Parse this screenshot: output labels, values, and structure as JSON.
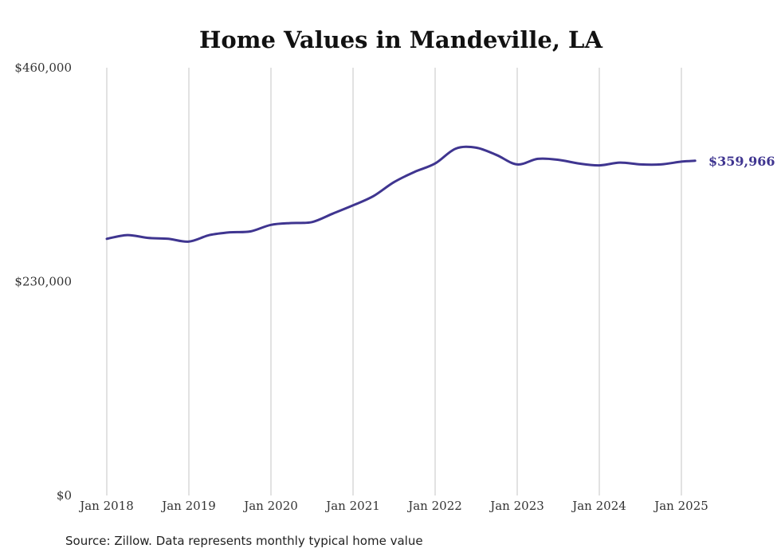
{
  "chart_data": {
    "type": "line",
    "title": "Home Values in Mandeville, LA",
    "source": "Source: Zillow. Data represents monthly typical home value",
    "xlabel": "",
    "ylabel": "",
    "ylim": [
      0,
      460000
    ],
    "y_ticks": [
      {
        "value": 0,
        "label": "$0"
      },
      {
        "value": 230000,
        "label": "$230,000"
      },
      {
        "value": 460000,
        "label": "$460,000"
      }
    ],
    "x_ticks": [
      {
        "value": "2018-01",
        "label": "Jan 2018"
      },
      {
        "value": "2019-01",
        "label": "Jan 2019"
      },
      {
        "value": "2020-01",
        "label": "Jan 2020"
      },
      {
        "value": "2021-01",
        "label": "Jan 2021"
      },
      {
        "value": "2022-01",
        "label": "Jan 2022"
      },
      {
        "value": "2023-01",
        "label": "Jan 2023"
      },
      {
        "value": "2024-01",
        "label": "Jan 2024"
      },
      {
        "value": "2025-01",
        "label": "Jan 2025"
      }
    ],
    "xlim": [
      "2018-01",
      "2025-03"
    ],
    "grid": "vertical",
    "color": "#3f3590",
    "end_label": "$359,966",
    "series": [
      {
        "x": [
          "2018-01",
          "2018-04",
          "2018-07",
          "2018-10",
          "2019-01",
          "2019-04",
          "2019-07",
          "2019-10",
          "2020-01",
          "2020-04",
          "2020-07",
          "2020-10",
          "2021-01",
          "2021-04",
          "2021-07",
          "2021-10",
          "2022-01",
          "2022-04",
          "2022-07",
          "2022-10",
          "2023-01",
          "2023-04",
          "2023-07",
          "2023-10",
          "2024-01",
          "2024-04",
          "2024-07",
          "2024-10",
          "2025-01",
          "2025-03"
        ],
        "y": [
          276000,
          280000,
          277000,
          276000,
          273000,
          280000,
          283000,
          284000,
          291000,
          293000,
          294000,
          303000,
          312000,
          322000,
          337000,
          348000,
          357000,
          373000,
          374000,
          366000,
          356000,
          362000,
          361000,
          357000,
          355000,
          358000,
          356000,
          356000,
          359000,
          359966
        ]
      }
    ]
  }
}
